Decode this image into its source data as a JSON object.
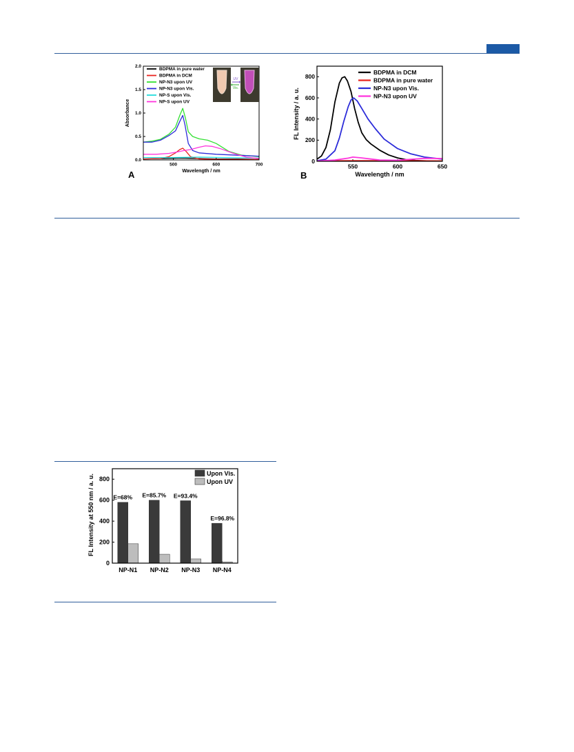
{
  "header": {
    "accent_color": "#1c5aa6",
    "rule_color": "#2e5c9a"
  },
  "chart_data": [
    {
      "id": "A",
      "type": "line",
      "panel_label": "A",
      "xlabel": "Wavelength / nm",
      "ylabel": "Absorbance",
      "xlim": [
        430,
        700
      ],
      "ylim": [
        0,
        2.0
      ],
      "xticks": [
        500,
        600,
        700
      ],
      "yticks": [
        0.0,
        0.5,
        1.0,
        1.5,
        2.0
      ],
      "ytick_labels": [
        "0.0",
        "0.5",
        "1.0",
        "1.5",
        "2.0"
      ],
      "legend_position": "top-left",
      "inset": {
        "arrow_top_label": "UV",
        "arrow_bottom_label": "Vis."
      },
      "series": [
        {
          "name": "BDPMA in pure water",
          "color": "#000000",
          "x": [
            430,
            480,
            520,
            560,
            600,
            650,
            700
          ],
          "y": [
            0.02,
            0.03,
            0.04,
            0.03,
            0.02,
            0.02,
            0.01
          ]
        },
        {
          "name": "BDPMA in DCM",
          "color": "#e8231f",
          "x": [
            430,
            470,
            490,
            505,
            515,
            522,
            530,
            540,
            560,
            600,
            700
          ],
          "y": [
            0.02,
            0.03,
            0.07,
            0.15,
            0.22,
            0.25,
            0.18,
            0.07,
            0.02,
            0.01,
            0.01
          ]
        },
        {
          "name": "NP-N3 upon UV",
          "color": "#33e033",
          "x": [
            430,
            450,
            470,
            490,
            505,
            515,
            522,
            528,
            535,
            545,
            560,
            580,
            600,
            630,
            660,
            700
          ],
          "y": [
            0.38,
            0.4,
            0.44,
            0.55,
            0.7,
            0.95,
            1.1,
            0.9,
            0.6,
            0.5,
            0.45,
            0.42,
            0.35,
            0.18,
            0.1,
            0.07
          ]
        },
        {
          "name": "NP-N3 upon Vis.",
          "color": "#2b2bd9",
          "x": [
            430,
            450,
            470,
            490,
            505,
            515,
            522,
            527,
            535,
            545,
            560,
            600,
            650,
            700
          ],
          "y": [
            0.38,
            0.38,
            0.42,
            0.52,
            0.62,
            0.82,
            0.95,
            0.75,
            0.35,
            0.2,
            0.15,
            0.12,
            0.1,
            0.08
          ]
        },
        {
          "name": "NP-S upon Vis.",
          "color": "#22dddd",
          "x": [
            430,
            500,
            560,
            620,
            700
          ],
          "y": [
            0.05,
            0.05,
            0.06,
            0.05,
            0.04
          ]
        },
        {
          "name": "NP-S upon UV",
          "color": "#ff33dd",
          "x": [
            430,
            460,
            490,
            510,
            525,
            540,
            560,
            575,
            590,
            610,
            640,
            670,
            700
          ],
          "y": [
            0.12,
            0.12,
            0.14,
            0.17,
            0.2,
            0.22,
            0.27,
            0.3,
            0.29,
            0.24,
            0.14,
            0.06,
            0.03
          ]
        }
      ]
    },
    {
      "id": "B",
      "type": "line",
      "panel_label": "B",
      "xlabel": "Wavelength / nm",
      "ylabel": "FL Intensity / a. u.",
      "xlim": [
        510,
        650
      ],
      "ylim": [
        0,
        900
      ],
      "xticks": [
        550,
        600,
        650
      ],
      "yticks": [
        0,
        200,
        400,
        600,
        800
      ],
      "ytick_labels": [
        "0",
        "200",
        "400",
        "600",
        "800"
      ],
      "legend_position": "top-right",
      "series": [
        {
          "name": "BDPMA in DCM",
          "color": "#000000",
          "x": [
            510,
            515,
            520,
            525,
            530,
            535,
            538,
            541,
            544,
            548,
            552,
            556,
            560,
            565,
            570,
            580,
            590,
            600,
            610,
            620,
            635,
            650
          ],
          "y": [
            20,
            50,
            130,
            300,
            560,
            740,
            790,
            800,
            760,
            660,
            500,
            370,
            270,
            205,
            165,
            105,
            60,
            32,
            15,
            8,
            3,
            2
          ]
        },
        {
          "name": "BDPMA in pure water",
          "color": "#e8231f",
          "x": [
            510,
            550,
            600,
            650
          ],
          "y": [
            4,
            5,
            5,
            4
          ]
        },
        {
          "name": "NP-N3 upon Vis.",
          "color": "#2b2bd9",
          "x": [
            510,
            520,
            530,
            535,
            540,
            545,
            548,
            551,
            555,
            560,
            567,
            575,
            585,
            600,
            615,
            630,
            650
          ],
          "y": [
            5,
            20,
            100,
            220,
            380,
            520,
            580,
            600,
            570,
            500,
            400,
            310,
            210,
            120,
            70,
            40,
            20
          ]
        },
        {
          "name": "NP-N3 upon UV",
          "color": "#ff33dd",
          "x": [
            510,
            530,
            545,
            550,
            560,
            580,
            600,
            620,
            630,
            650
          ],
          "y": [
            2,
            12,
            30,
            40,
            32,
            12,
            10,
            22,
            28,
            26
          ]
        }
      ]
    },
    {
      "id": "C",
      "type": "bar",
      "ylabel": "FL Intensity at 550 nm / a. u.",
      "categories": [
        "NP-N1",
        "NP-N2",
        "NP-N3",
        "NP-N4"
      ],
      "ylim": [
        0,
        900
      ],
      "yticks": [
        0,
        200,
        400,
        600,
        800
      ],
      "ytick_labels": [
        "0",
        "200",
        "400",
        "600",
        "800"
      ],
      "legend_position": "top-right",
      "series": [
        {
          "name": "Upon Vis.",
          "color": "#3a3a3a",
          "values": [
            580,
            600,
            595,
            380
          ]
        },
        {
          "name": "Upon UV",
          "color": "#bdbdbd",
          "values": [
            185,
            85,
            40,
            12
          ]
        }
      ],
      "annotations": [
        "E=68%",
        "E=85.7%",
        "E=93.4%",
        "E=96.8%"
      ]
    }
  ]
}
